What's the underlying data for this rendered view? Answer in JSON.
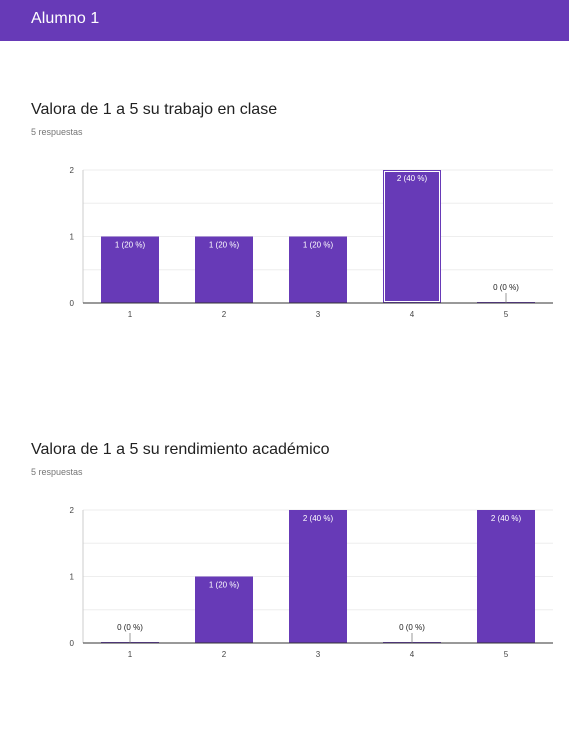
{
  "header": {
    "title": "Alumno 1"
  },
  "colors": {
    "accent": "#673ab7",
    "bar": "#673ab7",
    "grid": "#eeeeee",
    "axis": "#333333"
  },
  "questions": [
    {
      "title": "Valora de 1 a 5 su trabajo en clase",
      "responses": "5 respuestas"
    },
    {
      "title": "Valora de 1 a 5 su rendimiento académico",
      "responses": "5 respuestas"
    }
  ],
  "chart_data": [
    {
      "type": "bar",
      "title": "Valora de 1 a 5 su trabajo en clase",
      "categories": [
        "1",
        "2",
        "3",
        "4",
        "5"
      ],
      "values": [
        1,
        1,
        1,
        2,
        0
      ],
      "labels": [
        "1 (20 %)",
        "1 (20 %)",
        "1 (20 %)",
        "2 (40 %)",
        "0 (0 %)"
      ],
      "highlighted_index": 3,
      "ylim": [
        0,
        2
      ],
      "yticks": [
        "0",
        "1",
        "2"
      ],
      "grid": true
    },
    {
      "type": "bar",
      "title": "Valora de 1 a 5 su rendimiento académico",
      "categories": [
        "1",
        "2",
        "3",
        "4",
        "5"
      ],
      "values": [
        0,
        1,
        2,
        0,
        2
      ],
      "labels": [
        "0 (0 %)",
        "1 (20 %)",
        "2 (40 %)",
        "0 (0 %)",
        "2 (40 %)"
      ],
      "ylim": [
        0,
        2
      ],
      "yticks": [
        "0",
        "1",
        "2"
      ],
      "grid": true
    }
  ]
}
